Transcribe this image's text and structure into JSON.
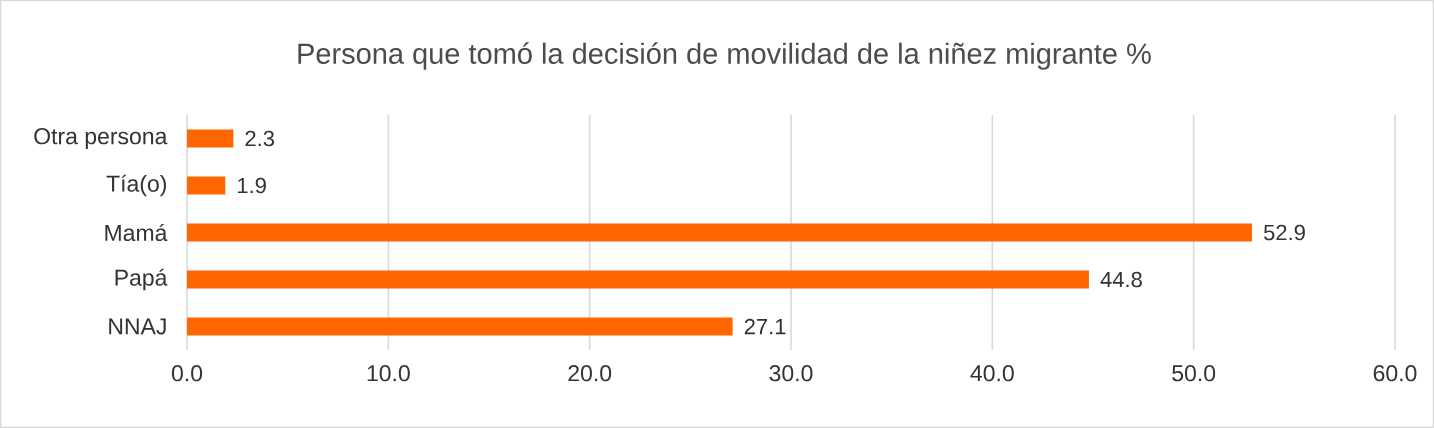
{
  "chart_data": {
    "type": "bar",
    "orientation": "horizontal",
    "title": "Persona que tomó la decisión de movilidad de la niñez migrante %",
    "categories": [
      "Otra persona",
      "Tía(o)",
      "Mamá",
      "Papá",
      "NNAJ"
    ],
    "values": [
      2.3,
      1.9,
      52.9,
      44.8,
      27.1
    ],
    "color": "#ff6600",
    "xlim": [
      0,
      60
    ],
    "xticks": [
      {
        "value": 0,
        "label": "0.0"
      },
      {
        "value": 10,
        "label": "10.0"
      },
      {
        "value": 20,
        "label": "20.0"
      },
      {
        "value": 30,
        "label": "30.0"
      },
      {
        "value": 40,
        "label": "40.0"
      },
      {
        "value": 50,
        "label": "50.0"
      },
      {
        "value": 60,
        "label": "60.0"
      }
    ],
    "grid": "x",
    "data_labels": true
  }
}
